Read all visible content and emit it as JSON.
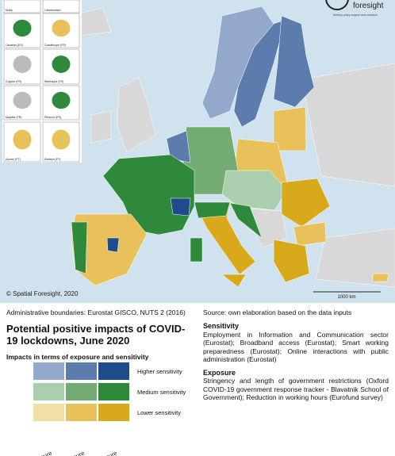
{
  "logo": {
    "name": "foresight",
    "tagline": "territory policy support and research"
  },
  "insets": [
    "Malta",
    "Liechtenstein",
    "Canarias (ES)",
    "Guadeloupe (FR)",
    "Guyane (FR)",
    "Martinique (FR)",
    "Mayotte (FR)",
    "Réunion (FR)",
    "Açores (PT)",
    "Madeira (PT)"
  ],
  "copyright": "© Spatial Foresight, 2020",
  "scale_bar": "1000 km",
  "boundaries_note": "Administrative boundaries: Eurostat GISCO, NUTS 2 (2016)",
  "source_note": "Source: own elaboration based on the data inputs",
  "title": "Potential positive impacts of COVID-19 lockdowns, June 2020",
  "legend": {
    "title": "Impacts in terms of exposure and sensitivity",
    "rows": [
      {
        "label": "Higher sensitivity",
        "colors": [
          "#93a9cb",
          "#5b7cac",
          "#1f4b8c"
        ]
      },
      {
        "label": "Medium sensitivity",
        "colors": [
          "#abcfae",
          "#72ac73",
          "#2e8a3a"
        ]
      },
      {
        "label": "Lower sensitivity",
        "colors": [
          "#f1e0a6",
          "#e8c15a",
          "#d9a91c"
        ]
      }
    ],
    "columns": [
      "Lower exposure",
      "Medium exposure",
      "Higher exposure"
    ]
  },
  "inputs": [
    {
      "heading": "Sensitivity",
      "text": "Employment in Information and Communication sector (Eurostat); Broadband access (Eurostat); Smart working preparedness (Eurostat); Online interactions with public administration (Eurostat)"
    },
    {
      "heading": "Exposure",
      "text": "Stringency and length of government restrictions (Oxford COVID-19 government response tracker - Blavatnik School of Government); Reduction in working hours (Eurofund survey)"
    }
  ]
}
